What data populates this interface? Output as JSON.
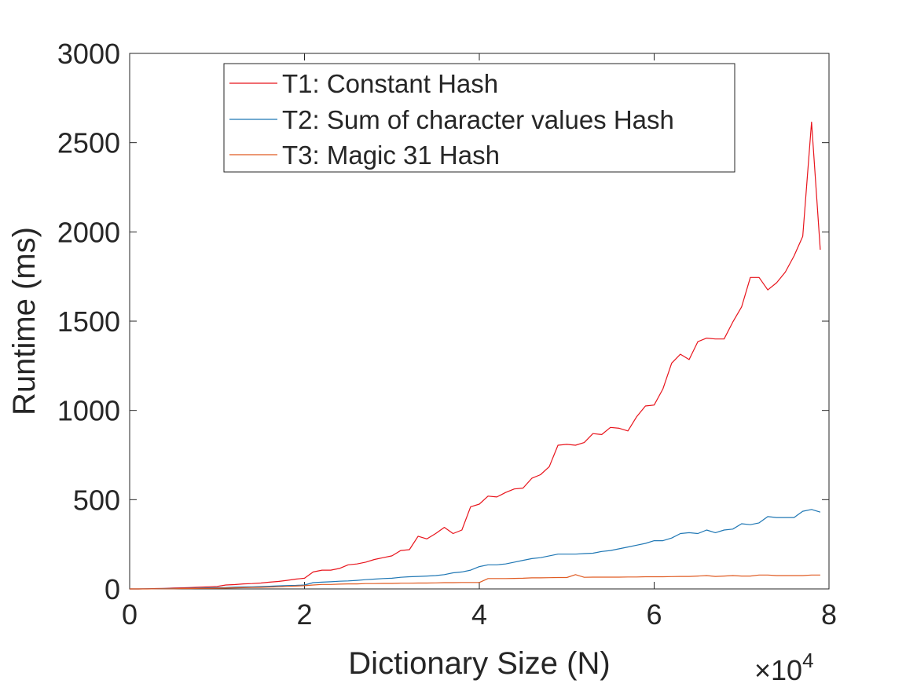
{
  "chart_data": {
    "type": "line",
    "title": "",
    "xlabel": "Dictionary Size (N)",
    "ylabel": "Runtime (ms)",
    "x_exponent": "4",
    "x_exponent_prefix": "×10",
    "xlim": [
      0,
      8
    ],
    "ylim": [
      0,
      3000
    ],
    "x_ticks": [
      0,
      2,
      4,
      6,
      8
    ],
    "y_ticks": [
      0,
      500,
      1000,
      1500,
      2000,
      2500,
      3000
    ],
    "x_tick_labels": [
      "0",
      "2",
      "4",
      "6",
      "8"
    ],
    "y_tick_labels": [
      "0",
      "500",
      "1000",
      "1500",
      "2000",
      "2500",
      "3000"
    ],
    "grid": false,
    "legend_position": "top-center",
    "x": [
      0.0,
      0.1,
      0.2,
      0.3,
      0.4,
      0.5,
      0.6,
      0.7,
      0.8,
      0.9,
      1.0,
      1.1,
      1.2,
      1.3,
      1.4,
      1.5,
      1.6,
      1.7,
      1.8,
      1.9,
      2.0,
      2.1,
      2.2,
      2.3,
      2.4,
      2.5,
      2.6,
      2.7,
      2.8,
      2.9,
      3.0,
      3.1,
      3.2,
      3.3,
      3.4,
      3.5,
      3.6,
      3.7,
      3.8,
      3.9,
      4.0,
      4.1,
      4.2,
      4.3,
      4.4,
      4.5,
      4.6,
      4.7,
      4.8,
      4.9,
      5.0,
      5.1,
      5.2,
      5.3,
      5.4,
      5.5,
      5.6,
      5.7,
      5.8,
      5.9,
      6.0,
      6.1,
      6.2,
      6.3,
      6.4,
      6.5,
      6.6,
      6.7,
      6.8,
      6.9,
      7.0,
      7.1,
      7.2,
      7.3,
      7.4,
      7.5,
      7.6,
      7.7,
      7.8,
      7.9
    ],
    "series": [
      {
        "name": "T1: Constant Hash",
        "color": "#e8141c",
        "values": [
          0,
          0,
          1,
          2,
          3,
          5,
          6,
          8,
          10,
          12,
          14,
          22,
          24,
          28,
          30,
          33,
          38,
          42,
          48,
          55,
          60,
          95,
          105,
          105,
          115,
          135,
          140,
          150,
          165,
          175,
          185,
          215,
          220,
          295,
          280,
          310,
          345,
          310,
          330,
          460,
          475,
          520,
          515,
          540,
          560,
          565,
          620,
          640,
          685,
          805,
          810,
          805,
          820,
          870,
          865,
          905,
          900,
          885,
          965,
          1025,
          1030,
          1120,
          1265,
          1315,
          1285,
          1385,
          1405,
          1400,
          1400,
          1495,
          1580,
          1745,
          1745,
          1675,
          1715,
          1775,
          1865,
          1975,
          2615,
          1900
        ]
      },
      {
        "name": "T2: Sum of character values Hash",
        "color": "#1f77b4",
        "values": [
          0,
          0,
          1,
          1,
          2,
          2,
          3,
          4,
          5,
          6,
          7,
          8,
          10,
          11,
          12,
          13,
          15,
          17,
          19,
          20,
          22,
          35,
          38,
          40,
          43,
          45,
          48,
          52,
          55,
          58,
          60,
          65,
          68,
          70,
          72,
          75,
          80,
          90,
          95,
          105,
          125,
          135,
          135,
          140,
          150,
          160,
          170,
          175,
          185,
          195,
          195,
          195,
          198,
          200,
          210,
          215,
          225,
          235,
          245,
          255,
          270,
          270,
          285,
          310,
          315,
          310,
          330,
          315,
          330,
          335,
          365,
          360,
          370,
          405,
          400,
          400,
          400,
          435,
          445,
          430
        ]
      },
      {
        "name": "T3: Magic 31 Hash",
        "color": "#e05b22",
        "values": [
          0,
          0,
          0,
          1,
          1,
          1,
          2,
          2,
          3,
          3,
          4,
          5,
          6,
          7,
          8,
          9,
          10,
          12,
          14,
          16,
          18,
          22,
          25,
          25,
          27,
          28,
          28,
          30,
          30,
          31,
          31,
          32,
          32,
          33,
          33,
          34,
          35,
          35,
          36,
          36,
          36,
          58,
          58,
          58,
          59,
          60,
          62,
          62,
          63,
          64,
          64,
          80,
          65,
          66,
          66,
          66,
          66,
          67,
          67,
          68,
          68,
          68,
          69,
          70,
          70,
          72,
          75,
          70,
          72,
          75,
          72,
          72,
          78,
          78,
          75,
          75,
          75,
          75,
          78,
          78
        ]
      }
    ]
  }
}
